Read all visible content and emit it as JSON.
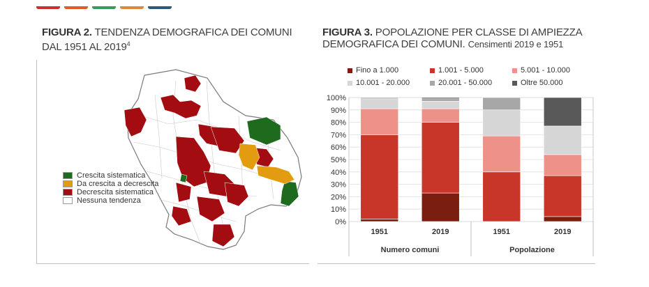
{
  "topbar_colors": [
    "#c8302a",
    "#e05a2a",
    "#3a9a5a",
    "#d88a3a",
    "#2a5a7a"
  ],
  "figure2": {
    "label": "FIGURA 2.",
    "title_line1": "TENDENZA DEMOGRAFICA DEI COMUNI",
    "title_line2": "DAL 1951 AL 2019",
    "footnote": "4",
    "legend": [
      {
        "label": "Crescita sistematica",
        "color": "#1e6b1e"
      },
      {
        "label": "Da crescita a decrescita",
        "color": "#e39b0f"
      },
      {
        "label": "Decrescita sistematica",
        "color": "#a30d12"
      },
      {
        "label": "Nessuna tendenza",
        "color": "#ffffff"
      }
    ]
  },
  "figure3": {
    "label": "FIGURA 3.",
    "title_line1": "POPOLAZIONE PER CLASSE DI AMPIEZZA",
    "title_line2": "DEMOGRAFICA DEI COMUNI.",
    "subtitle": "Censimenti 2019 e 1951"
  },
  "chart_data": {
    "type": "bar",
    "stacked": true,
    "normalized": true,
    "categories": [
      "1951",
      "2019",
      "1951",
      "2019"
    ],
    "groups": [
      {
        "label": "Numero comuni",
        "categories": [
          "1951",
          "2019"
        ]
      },
      {
        "label": "Popolazione",
        "categories": [
          "1951",
          "2019"
        ]
      }
    ],
    "yticks": [
      "0%",
      "10%",
      "20%",
      "30%",
      "40%",
      "50%",
      "60%",
      "70%",
      "80%",
      "90%",
      "100%"
    ],
    "ylim": [
      0,
      100
    ],
    "grid": true,
    "legend_position": "top",
    "series": [
      {
        "name": "Fino a 1.000",
        "color": "#7a1e10",
        "values": [
          2,
          23,
          0,
          4
        ]
      },
      {
        "name": "1.001 - 5.000",
        "color": "#c8362a",
        "values": [
          68,
          57,
          40,
          33
        ]
      },
      {
        "name": "5.001 - 10.000",
        "color": "#ee9289",
        "values": [
          21,
          11,
          29,
          17
        ]
      },
      {
        "name": "10.001 - 20.000",
        "color": "#d6d6d6",
        "values": [
          8,
          6,
          21,
          23
        ]
      },
      {
        "name": "20.001 - 50.000",
        "color": "#a7a7a7",
        "values": [
          1,
          2,
          10,
          0
        ]
      },
      {
        "name": "Oltre 50.000",
        "color": "#595959",
        "values": [
          0,
          1,
          0,
          23
        ]
      }
    ]
  }
}
